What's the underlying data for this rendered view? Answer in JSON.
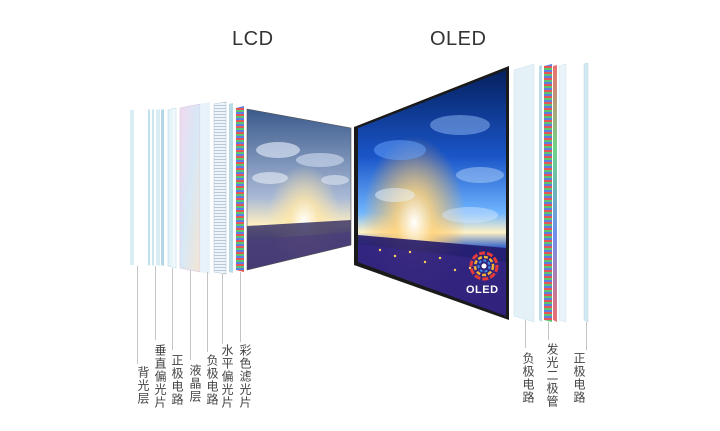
{
  "titles": {
    "lcd": "LCD",
    "oled": "OLED"
  },
  "lcd_layers": [
    {
      "label": "背光层"
    },
    {
      "label": "垂直偏光片"
    },
    {
      "label": "正极电路"
    },
    {
      "label": "液晶层"
    },
    {
      "label": "负极电路"
    },
    {
      "label": "水平偏光片"
    },
    {
      "label": "彩色滤光片"
    }
  ],
  "oled_layers": [
    {
      "label": "负极电路"
    },
    {
      "label": "发光二极管"
    },
    {
      "label": "正极电路"
    }
  ],
  "oled_logo_text": "OLED",
  "colors": {
    "text": "#444444",
    "sky_top": "#0b2a7a",
    "sun": "#fff4c8",
    "ground": "#2a1d66",
    "accent_red": "#e43a3a",
    "accent_blue": "#3a6ee4",
    "accent_green": "#3acb5a"
  }
}
